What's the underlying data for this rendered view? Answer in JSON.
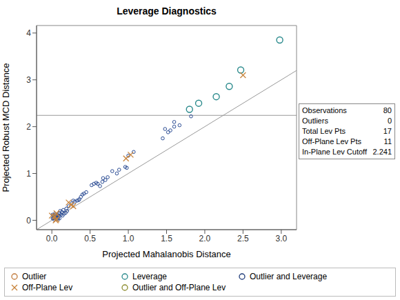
{
  "chart_data": {
    "type": "scatter",
    "title": "Leverage Diagnostics",
    "x_label": "Projected Mahalanobis Distance",
    "y_label": "Projected Robust MCD Distance",
    "xlim": [
      -0.2,
      3.2
    ],
    "ylim": [
      -0.2,
      4.16
    ],
    "xticks": [
      {
        "value": 0,
        "label": "0.0"
      },
      {
        "value": 0.5,
        "label": "0.5"
      },
      {
        "value": 1,
        "label": "1.0"
      },
      {
        "value": 1.5,
        "label": "1.5"
      },
      {
        "value": 2,
        "label": "2.0"
      },
      {
        "value": 2.5,
        "label": "2.5"
      },
      {
        "value": 3,
        "label": "3.0"
      }
    ],
    "yticks": [
      0,
      1,
      2,
      3,
      4
    ],
    "grid": false,
    "legend": "bottom",
    "reference_lines": [
      {
        "x": [
          -0.2,
          3.2
        ],
        "y": [
          -0.2,
          3.2
        ]
      },
      {
        "y": 2.241
      }
    ],
    "inset": [
      {
        "label": "Observations",
        "value": 80
      },
      {
        "label": "Outliers",
        "value": 0
      },
      {
        "label": "Total Lev Pts",
        "value": 17
      },
      {
        "label": "Off-Plane Lev Pts",
        "value": 11
      },
      {
        "label": "In-Plane Lev Cutoff",
        "value": 2.241
      }
    ],
    "series": [
      {
        "color": "#2b4c94",
        "marker": "circle",
        "x": [
          1.82,
          1.67,
          1.6,
          1.6,
          1.55,
          1.52,
          1.48,
          1.45,
          1.07,
          1.0,
          0.98,
          0.96,
          0.88,
          0.85,
          0.79,
          0.73,
          0.7,
          0.67,
          0.66,
          0.63,
          0.6,
          0.58,
          0.55,
          0.52,
          0.45,
          0.42,
          0.4,
          0.38,
          0.36,
          0.35,
          0.33,
          0.3,
          0.28,
          0.26,
          0.22,
          0.2,
          0.19,
          0.15,
          0.13,
          0.12,
          0.11,
          0.1,
          0.09,
          0.08,
          0.07,
          0.07,
          0.06,
          0.06,
          0.05,
          0.05,
          0.04,
          0.04,
          0.03,
          0.03,
          0.02,
          0.02,
          0.01,
          0.01,
          0.08,
          0.1,
          0.14,
          0.16,
          0.18
        ],
        "values": [
          2.22,
          2.03,
          2.1,
          2.0,
          1.92,
          1.88,
          1.95,
          1.75,
          1.46,
          1.38,
          1.12,
          1.14,
          1.08,
          1.0,
          1.05,
          0.92,
          0.86,
          0.9,
          0.82,
          0.73,
          0.78,
          0.8,
          0.78,
          0.75,
          0.6,
          0.57,
          0.55,
          0.5,
          0.45,
          0.43,
          0.42,
          0.4,
          0.42,
          0.36,
          0.3,
          0.2,
          0.25,
          0.22,
          0.18,
          0.12,
          0.2,
          0.15,
          0.1,
          0.05,
          0.12,
          0.08,
          0.06,
          0.1,
          0.12,
          0.03,
          0.05,
          0.14,
          0.02,
          0.08,
          0.05,
          0.1,
          0.04,
          0.12,
          0.02,
          0.04,
          0.1,
          0.14,
          0.16
        ]
      },
      {
        "name": "Outlier",
        "color": "#c0793a",
        "marker": "circle",
        "x": [],
        "values": []
      },
      {
        "name": "Leverage",
        "color": "#2a8a8c",
        "marker": "circle",
        "x": [
          1.8,
          1.92,
          2.15,
          2.32,
          2.47,
          2.98
        ],
        "values": [
          2.37,
          2.5,
          2.64,
          2.86,
          3.21,
          3.85
        ]
      },
      {
        "name": "Outlier and Leverage",
        "color": "#1e3a78",
        "marker": "circle",
        "x": [],
        "values": []
      },
      {
        "name": "Off-Plane Lev",
        "color": "#c8843c",
        "marker": "x",
        "x": [
          2.5,
          0.97,
          1.03,
          0.22,
          0.28,
          0.25,
          0.0,
          0.04,
          0.06,
          0.06,
          0.05
        ],
        "values": [
          3.1,
          1.32,
          1.4,
          0.38,
          0.3,
          0.33,
          0.1,
          0.08,
          0.15,
          0.02,
          0.0
        ]
      },
      {
        "name": "Outlier and Off-Plane Lev",
        "color": "#8c8c2e",
        "marker": "circle",
        "x": [],
        "values": []
      }
    ]
  }
}
